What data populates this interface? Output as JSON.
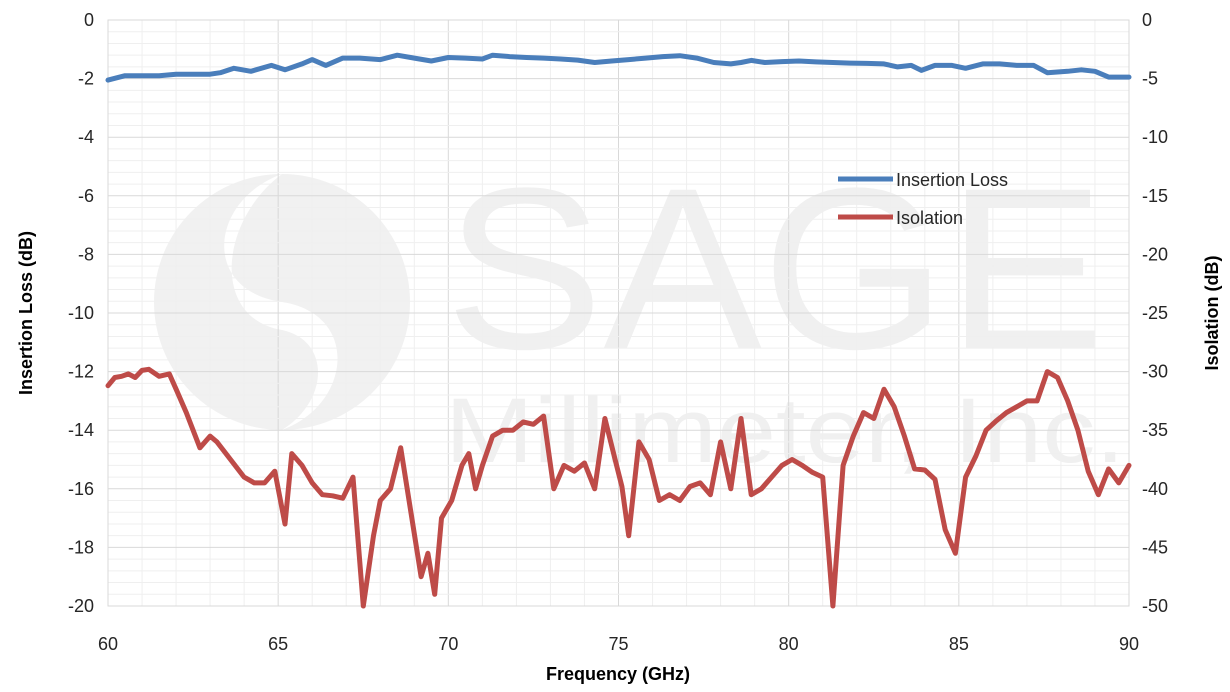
{
  "watermark": {
    "line1": "SAGE",
    "line2": "Millimeter, Inc."
  },
  "chart_data": {
    "type": "line",
    "title": "",
    "xlabel": "Frequency (GHz)",
    "ylabel_left": "Insertion Loss (dB)",
    "ylabel_right": "Isolation (dB)",
    "xlim": [
      60,
      90
    ],
    "ylim_left": [
      -20,
      0
    ],
    "ylim_right": [
      -50,
      0
    ],
    "x_ticks": [
      60,
      65,
      70,
      75,
      80,
      85,
      90
    ],
    "y_ticks_left": [
      0,
      -2,
      -4,
      -6,
      -8,
      -10,
      -12,
      -14,
      -16,
      -18,
      -20
    ],
    "y_ticks_right": [
      0,
      -5,
      -10,
      -15,
      -20,
      -25,
      -30,
      -35,
      -40,
      -45,
      -50
    ],
    "grid": true,
    "legend_position": "right-middle",
    "series": [
      {
        "name": "Insertion Loss",
        "axis": "left",
        "color": "#4a7ebb",
        "x": [
          60,
          60.5,
          61,
          61.5,
          62,
          62.5,
          63,
          63.3,
          63.7,
          64.2,
          64.8,
          65.2,
          65.7,
          66,
          66.4,
          66.9,
          67.4,
          68,
          68.5,
          69,
          69.5,
          70,
          70.5,
          71,
          71.3,
          71.8,
          72.3,
          72.8,
          73.3,
          73.8,
          74.3,
          74.8,
          75.3,
          75.8,
          76.3,
          76.8,
          77.3,
          77.8,
          78.3,
          78.6,
          78.9,
          79.3,
          79.8,
          80.3,
          80.8,
          81.3,
          81.8,
          82.3,
          82.8,
          83.2,
          83.6,
          83.9,
          84.3,
          84.8,
          85.2,
          85.7,
          86.2,
          86.7,
          87.2,
          87.6,
          88.2,
          88.6,
          89,
          89.4,
          89.8,
          90
        ],
        "y": [
          -2.05,
          -1.9,
          -1.9,
          -1.9,
          -1.85,
          -1.85,
          -1.85,
          -1.8,
          -1.65,
          -1.75,
          -1.55,
          -1.7,
          -1.5,
          -1.35,
          -1.55,
          -1.3,
          -1.3,
          -1.35,
          -1.2,
          -1.3,
          -1.4,
          -1.28,
          -1.3,
          -1.33,
          -1.2,
          -1.25,
          -1.28,
          -1.3,
          -1.33,
          -1.37,
          -1.45,
          -1.4,
          -1.35,
          -1.3,
          -1.25,
          -1.22,
          -1.3,
          -1.45,
          -1.5,
          -1.45,
          -1.38,
          -1.45,
          -1.42,
          -1.4,
          -1.43,
          -1.45,
          -1.47,
          -1.48,
          -1.5,
          -1.6,
          -1.55,
          -1.72,
          -1.55,
          -1.55,
          -1.65,
          -1.5,
          -1.5,
          -1.55,
          -1.55,
          -1.8,
          -1.75,
          -1.7,
          -1.75,
          -1.95,
          -1.95,
          -1.95
        ]
      },
      {
        "name": "Isolation",
        "axis": "right",
        "color": "#be4b48",
        "x": [
          60,
          60.2,
          60.4,
          60.6,
          60.8,
          61,
          61.2,
          61.5,
          61.8,
          62,
          62.3,
          62.7,
          63,
          63.2,
          63.6,
          64,
          64.3,
          64.6,
          64.9,
          65.2,
          65.4,
          65.7,
          66,
          66.3,
          66.6,
          66.9,
          67.2,
          67.5,
          67.8,
          68,
          68.3,
          68.6,
          68.9,
          69.2,
          69.4,
          69.6,
          69.8,
          70.1,
          70.4,
          70.6,
          70.8,
          71,
          71.3,
          71.6,
          71.9,
          72.2,
          72.5,
          72.8,
          73.1,
          73.4,
          73.7,
          74,
          74.3,
          74.6,
          74.9,
          75.1,
          75.3,
          75.6,
          75.9,
          76.2,
          76.5,
          76.8,
          77.1,
          77.4,
          77.7,
          78,
          78.3,
          78.6,
          78.9,
          79.2,
          79.5,
          79.8,
          80.1,
          80.4,
          80.7,
          81,
          81.3,
          81.6,
          81.9,
          82.2,
          82.5,
          82.8,
          83.1,
          83.4,
          83.7,
          84,
          84.3,
          84.6,
          84.9,
          85.2,
          85.5,
          85.8,
          86.1,
          86.4,
          86.7,
          87,
          87.3,
          87.6,
          87.9,
          88.2,
          88.5,
          88.8,
          89.1,
          89.4,
          89.7,
          90
        ],
        "y": [
          -31.2,
          -30.5,
          -30.4,
          -30.2,
          -30.5,
          -29.9,
          -29.8,
          -30.4,
          -30.2,
          -31.5,
          -33.5,
          -36.5,
          -35.5,
          -36,
          -37.5,
          -39,
          -39.5,
          -39.5,
          -38.5,
          -43,
          -37,
          -38,
          -39.5,
          -40.5,
          -40.6,
          -40.8,
          -39,
          -50,
          -44,
          -41,
          -40,
          -36.5,
          -42,
          -47.5,
          -45.5,
          -49,
          -42.5,
          -41,
          -38,
          -37,
          -40,
          -38,
          -35.5,
          -35,
          -35,
          -34.3,
          -34.5,
          -33.8,
          -40,
          -38,
          -38.5,
          -37.8,
          -40,
          -34,
          -37.5,
          -39.8,
          -44,
          -36,
          -37.5,
          -41,
          -40.5,
          -41,
          -39.8,
          -39.5,
          -40.5,
          -36,
          -40,
          -34,
          -40.5,
          -40,
          -39,
          -38,
          -37.5,
          -38,
          -38.6,
          -39,
          -50,
          -38,
          -35.5,
          -33.5,
          -34,
          -31.5,
          -33,
          -35.5,
          -38.3,
          -38.4,
          -39.2,
          -43.5,
          -45.5,
          -39,
          -37.2,
          -35,
          -34.2,
          -33.5,
          -33,
          -32.5,
          -32.5,
          -30,
          -30.5,
          -32.5,
          -35,
          -38.5,
          -40.5,
          -38.3,
          -39.5,
          -38
        ]
      }
    ]
  }
}
